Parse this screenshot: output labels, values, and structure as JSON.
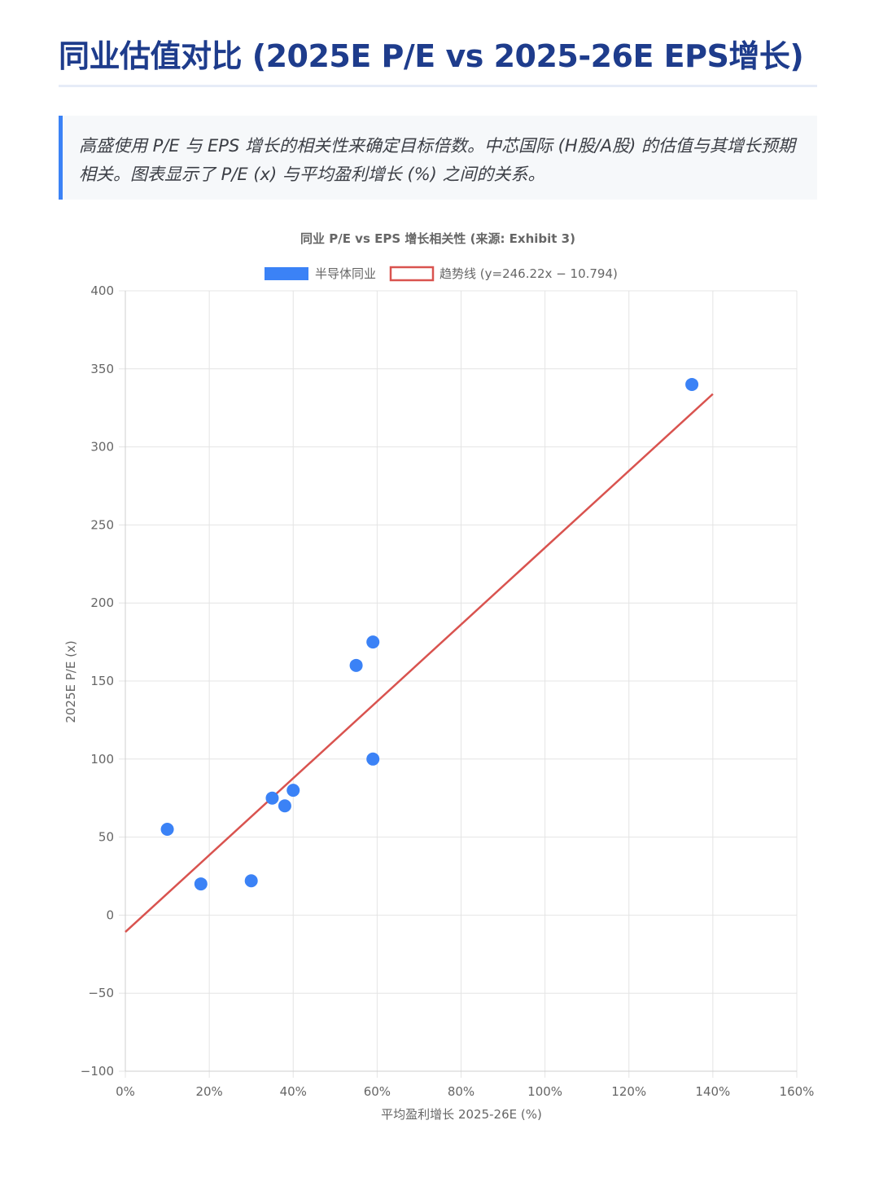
{
  "page": {
    "title": "同业估值对比 (2025E P/E vs 2025-26E EPS增长)",
    "note": "高盛使用 P/E 与 EPS 增长的相关性来确定目标倍数。中芯国际 (H股/A股) 的估值与其增长预期相关。图表显示了 P/E (x) 与平均盈利增长 (%) 之间的关系。"
  },
  "chart_data": {
    "type": "scatter",
    "title": "同业 P/E vs EPS 增长相关性 (来源: Exhibit 3)",
    "xlabel": "平均盈利增长 2025-26E (%)",
    "ylabel": "2025E P/E (x)",
    "xlim": [
      0,
      1.6
    ],
    "ylim": [
      -100,
      400
    ],
    "x_ticks": [
      "0%",
      "20%",
      "40%",
      "60%",
      "80%",
      "100%",
      "120%",
      "140%",
      "160%"
    ],
    "y_ticks": [
      "400",
      "350",
      "300",
      "250",
      "200",
      "150",
      "100",
      "50",
      "0",
      "−50",
      "−100"
    ],
    "grid": true,
    "legend_position": "top-center",
    "series": [
      {
        "name": "半导体同业",
        "kind": "scatter",
        "color": "#3b82f6",
        "points": [
          {
            "x": 0.1,
            "y": 55
          },
          {
            "x": 0.18,
            "y": 20
          },
          {
            "x": 0.3,
            "y": 22
          },
          {
            "x": 0.35,
            "y": 75
          },
          {
            "x": 0.38,
            "y": 70
          },
          {
            "x": 0.4,
            "y": 80
          },
          {
            "x": 0.55,
            "y": 160
          },
          {
            "x": 0.59,
            "y": 175
          },
          {
            "x": 0.59,
            "y": 100
          },
          {
            "x": 1.35,
            "y": 340
          }
        ]
      },
      {
        "name": "趋势线 (y=246.22x − 10.794)",
        "kind": "line",
        "color": "#d9534f",
        "points": [
          {
            "x": 0.0,
            "y": -10.794
          },
          {
            "x": 1.4,
            "y": 333.914
          }
        ]
      }
    ]
  }
}
